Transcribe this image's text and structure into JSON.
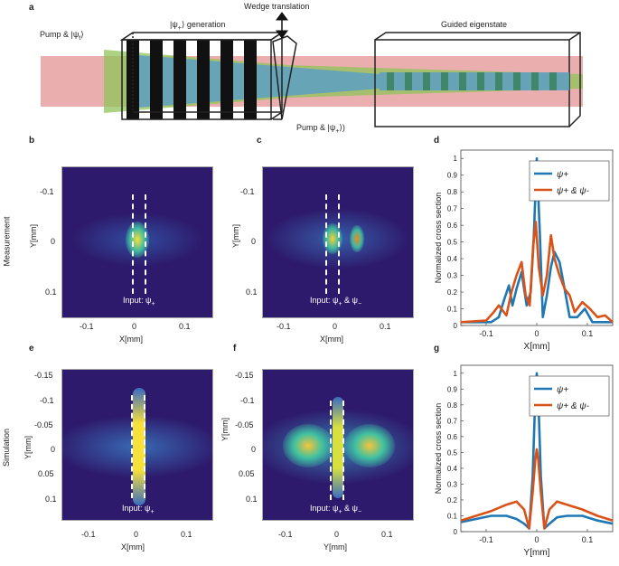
{
  "colors": {
    "beam_red": "#e79a9a",
    "green": "#8fc45a",
    "blue_beam": "#5d9bbd",
    "heat_bg": "#2e1a6c",
    "series_blue": "#1f77b4",
    "series_orange": "#d95319"
  },
  "panel_a": {
    "letter": "a",
    "pump_left": "Pump & |ψ",
    "pump_left_sub": "t",
    "pump_left_end": "⟩",
    "generation": "|ψ",
    "generation_sub": "+",
    "generation_end": "⟩ generation",
    "wedge": "Wedge translation",
    "guided": "Guided eigenstate",
    "pump_right": "Pump & |ψ",
    "pump_right_sub": "+",
    "pump_right_end": "⟩)"
  },
  "row_labels": {
    "measurement": "Measurement",
    "simulation": "Simulation"
  },
  "panel_b": {
    "letter": "b",
    "ylabel": "Y[mm]",
    "xlabel": "X[mm]",
    "yticks": [
      "-0.1",
      "0",
      "0.1"
    ],
    "xticks": [
      "-0.1",
      "0",
      "0.1"
    ],
    "input": "Input: ψ",
    "input_sub": "+"
  },
  "panel_c": {
    "letter": "c",
    "ylabel": "Y[mm]",
    "xlabel": "X[mm]",
    "yticks": [
      "-0.1",
      "0",
      "0.1"
    ],
    "xticks": [
      "-0.1",
      "0",
      "0.1"
    ],
    "input": "Input: ψ",
    "input_sub": "+",
    "input_mid": " & ψ",
    "input_sub2": "−"
  },
  "panel_e": {
    "letter": "e",
    "ylabel": "Y[mm]",
    "xlabel": "X[mm]",
    "yticks": [
      "-0.15",
      "-0.1",
      "-0.05",
      "0",
      "0.05",
      "0.1"
    ],
    "xticks": [
      "-0.1",
      "0",
      "0.1"
    ],
    "input": "Input: ψ",
    "input_sub": "+"
  },
  "panel_f": {
    "letter": "f",
    "ylabel": "Y[mm]",
    "xlabel": "Y[mm]",
    "yticks": [
      "-0.15",
      "-0.1",
      "-0.05",
      "0",
      "0.05",
      "0.1"
    ],
    "xticks": [
      "-0.1",
      "0",
      "0.1"
    ],
    "input": "Input: ψ",
    "input_sub": "+",
    "input_mid": " & ψ",
    "input_sub2": "−"
  },
  "chart_data": [
    {
      "panel": "d",
      "type": "line",
      "ylabel": "Normalized cross section",
      "xlabel": "X[mm]",
      "xlim": [
        -0.15,
        0.15
      ],
      "ylim": [
        0,
        1.05
      ],
      "xticks": [
        -0.1,
        0,
        0.1
      ],
      "yticks": [
        0,
        0.1,
        0.2,
        0.3,
        0.4,
        0.5,
        0.6,
        0.7,
        0.8,
        0.9,
        1
      ],
      "legend_position": "top-right",
      "series": [
        {
          "name": "ψ+",
          "x": [
            -0.15,
            -0.09,
            -0.075,
            -0.065,
            -0.055,
            -0.048,
            -0.04,
            -0.03,
            -0.02,
            -0.012,
            -0.006,
            0,
            0.006,
            0.012,
            0.02,
            0.028,
            0.035,
            0.045,
            0.055,
            0.065,
            0.08,
            0.095,
            0.11,
            0.13,
            0.15
          ],
          "y": [
            0.02,
            0.02,
            0.05,
            0.15,
            0.24,
            0.12,
            0.22,
            0.32,
            0.12,
            0.2,
            0.52,
            1.0,
            0.55,
            0.05,
            0.18,
            0.35,
            0.44,
            0.38,
            0.22,
            0.05,
            0.05,
            0.1,
            0.02,
            0.02,
            0.02
          ]
        },
        {
          "name": "ψ+ & ψ-",
          "x": [
            -0.15,
            -0.1,
            -0.085,
            -0.075,
            -0.06,
            -0.05,
            -0.04,
            -0.03,
            -0.022,
            -0.014,
            -0.007,
            -0.002,
            0.004,
            0.012,
            0.02,
            0.028,
            0.035,
            0.045,
            0.055,
            0.065,
            0.075,
            0.09,
            0.105,
            0.12,
            0.135,
            0.15
          ],
          "y": [
            0.02,
            0.03,
            0.08,
            0.12,
            0.06,
            0.2,
            0.3,
            0.38,
            0.18,
            0.12,
            0.48,
            0.62,
            0.35,
            0.18,
            0.3,
            0.54,
            0.4,
            0.3,
            0.22,
            0.18,
            0.08,
            0.14,
            0.1,
            0.05,
            0.06,
            0.02
          ]
        }
      ]
    },
    {
      "panel": "g",
      "type": "line",
      "ylabel": "Normalized cross section",
      "xlabel": "Y[mm]",
      "xlim": [
        -0.15,
        0.15
      ],
      "ylim": [
        0,
        1.05
      ],
      "xticks": [
        -0.1,
        0,
        0.1
      ],
      "yticks": [
        0,
        0.1,
        0.2,
        0.3,
        0.4,
        0.5,
        0.6,
        0.7,
        0.8,
        0.9,
        1
      ],
      "legend_position": "top-right",
      "series": [
        {
          "name": "ψ+",
          "x": [
            -0.15,
            -0.12,
            -0.09,
            -0.06,
            -0.04,
            -0.025,
            -0.015,
            -0.008,
            -0.003,
            0,
            0.003,
            0.008,
            0.015,
            0.025,
            0.04,
            0.06,
            0.09,
            0.12,
            0.15
          ],
          "y": [
            0.06,
            0.08,
            0.1,
            0.1,
            0.08,
            0.05,
            0.02,
            0.35,
            0.85,
            1.0,
            0.85,
            0.35,
            0.02,
            0.05,
            0.09,
            0.1,
            0.1,
            0.07,
            0.05
          ]
        },
        {
          "name": "ψ+ & ψ-",
          "x": [
            -0.15,
            -0.12,
            -0.09,
            -0.06,
            -0.04,
            -0.025,
            -0.015,
            -0.008,
            -0.003,
            0,
            0.003,
            0.008,
            0.015,
            0.025,
            0.04,
            0.06,
            0.09,
            0.12,
            0.15
          ],
          "y": [
            0.07,
            0.1,
            0.13,
            0.17,
            0.19,
            0.14,
            0.02,
            0.25,
            0.45,
            0.52,
            0.45,
            0.25,
            0.02,
            0.14,
            0.19,
            0.17,
            0.14,
            0.1,
            0.07
          ]
        }
      ]
    }
  ]
}
